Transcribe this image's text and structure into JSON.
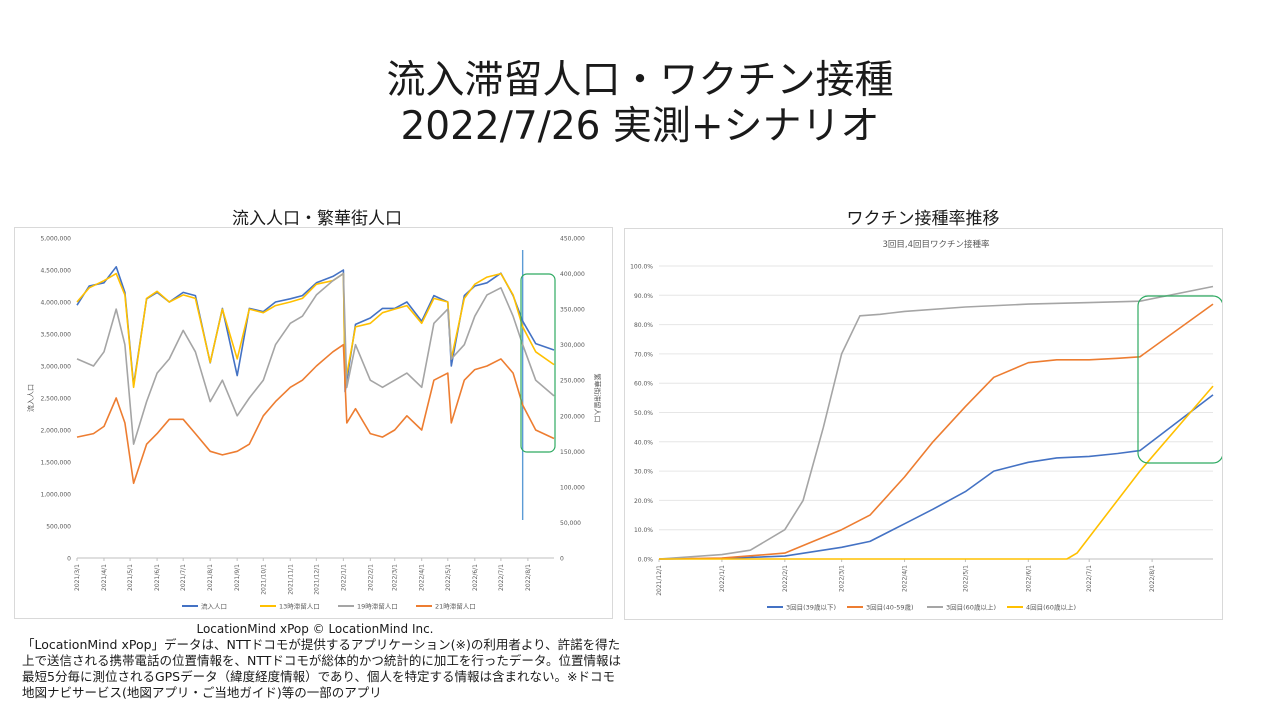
{
  "slide": {
    "title_line1": "流入滞留人口・ワクチン接種",
    "title_line2": "2022/7/26 実測+シナリオ",
    "left_title": "流入人口・繁華街人口",
    "right_title": "ワクチン接種率推移",
    "source": "LocationMind xPop © LocationMind Inc.",
    "note": "「LocationMind xPop」データは、NTTドコモが提供するアプリケーション(※)の利用者より、許諾を得た上で送信される携帯電話の位置情報を、NTTドコモが総体的かつ統計的に加工を行ったデータ。位置情報は最短5分毎に測位されるGPSデータ（緯度経度情報）であり、個人を特定する情報は含まれない。※ドコモ地図ナビサービス(地図アプリ・ご当地ガイド)等の一部のアプリ"
  },
  "chart_data": [
    {
      "type": "line",
      "title": "",
      "ylabel": "流入人口",
      "y2label": "繁華街滞留人口",
      "ylim": [
        0,
        5000000
      ],
      "y2lim": [
        0,
        450000
      ],
      "yticks": [
        "0",
        "500,000",
        "1,000,000",
        "1,500,000",
        "2,000,000",
        "2,500,000",
        "3,000,000",
        "3,500,000",
        "4,000,000",
        "4,500,000",
        "5,000,000"
      ],
      "y2ticks": [
        "0",
        "50,000",
        "100,000",
        "150,000",
        "200,000",
        "250,000",
        "300,000",
        "350,000",
        "400,000",
        "450,000"
      ],
      "xticks": [
        "2021/3/1",
        "2021/4/1",
        "2021/5/1",
        "2021/6/1",
        "2021/7/1",
        "2021/8/1",
        "2021/9/1",
        "2021/10/1",
        "2021/11/1",
        "2021/12/1",
        "2022/1/1",
        "2022/2/1",
        "2022/3/1",
        "2022/4/1",
        "2022/5/1",
        "2022/6/1",
        "2022/7/1",
        "2022/8/1"
      ],
      "legend_position": "bottom",
      "measured_until": "2022/7/26",
      "series": [
        {
          "name": "流入人口",
          "color": "#4472C4",
          "axis": "left",
          "x": [
            "2021/3/1",
            "2021/3/15",
            "2021/4/1",
            "2021/4/15",
            "2021/4/25",
            "2021/5/5",
            "2021/5/20",
            "2021/6/1",
            "2021/6/15",
            "2021/7/1",
            "2021/7/15",
            "2021/8/1",
            "2021/8/15",
            "2021/9/1",
            "2021/9/15",
            "2021/10/1",
            "2021/10/15",
            "2021/11/1",
            "2021/11/15",
            "2021/12/1",
            "2021/12/20",
            "2022/1/1",
            "2022/1/3",
            "2022/1/15",
            "2022/2/1",
            "2022/2/15",
            "2022/3/1",
            "2022/3/15",
            "2022/4/1",
            "2022/4/15",
            "2022/5/1",
            "2022/5/5",
            "2022/5/20",
            "2022/6/1",
            "2022/6/15",
            "2022/7/1",
            "2022/7/15",
            "2022/7/26",
            "2022/8/10",
            "2022/8/31"
          ],
          "values": [
            3950000,
            4250000,
            4300000,
            4550000,
            4150000,
            2700000,
            4050000,
            4150000,
            4000000,
            4150000,
            4100000,
            3050000,
            3900000,
            2850000,
            3900000,
            3850000,
            4000000,
            4050000,
            4100000,
            4300000,
            4400000,
            4500000,
            2600000,
            3650000,
            3750000,
            3900000,
            3900000,
            4000000,
            3700000,
            4100000,
            4000000,
            3000000,
            4100000,
            4250000,
            4300000,
            4450000,
            4100000,
            3700000,
            3350000,
            3250000
          ]
        },
        {
          "name": "13時滞留人口",
          "color": "#FFC000",
          "axis": "right",
          "x": [
            "2021/3/1",
            "2021/3/15",
            "2021/4/1",
            "2021/4/15",
            "2021/4/25",
            "2021/5/5",
            "2021/5/20",
            "2021/6/1",
            "2021/6/15",
            "2021/7/1",
            "2021/7/15",
            "2021/8/1",
            "2021/8/15",
            "2021/9/1",
            "2021/9/15",
            "2021/10/1",
            "2021/10/15",
            "2021/11/1",
            "2021/11/15",
            "2021/12/1",
            "2021/12/20",
            "2022/1/1",
            "2022/1/3",
            "2022/1/15",
            "2022/2/1",
            "2022/2/15",
            "2022/3/1",
            "2022/3/15",
            "2022/4/1",
            "2022/4/15",
            "2022/5/1",
            "2022/5/5",
            "2022/5/20",
            "2022/6/1",
            "2022/6/15",
            "2022/7/1",
            "2022/7/15",
            "2022/7/26",
            "2022/8/10",
            "2022/8/31"
          ],
          "values": [
            360000,
            380000,
            390000,
            400000,
            370000,
            240000,
            365000,
            375000,
            360000,
            370000,
            365000,
            275000,
            350000,
            280000,
            350000,
            345000,
            355000,
            360000,
            365000,
            385000,
            390000,
            400000,
            245000,
            325000,
            330000,
            345000,
            350000,
            355000,
            330000,
            365000,
            360000,
            280000,
            365000,
            385000,
            395000,
            400000,
            370000,
            325000,
            290000,
            272000
          ]
        },
        {
          "name": "19時滞留人口",
          "color": "#A5A5A5",
          "axis": "right",
          "x": [
            "2021/3/1",
            "2021/3/20",
            "2021/4/1",
            "2021/4/15",
            "2021/4/25",
            "2021/5/5",
            "2021/5/20",
            "2021/6/1",
            "2021/6/15",
            "2021/7/1",
            "2021/7/15",
            "2021/8/1",
            "2021/8/15",
            "2021/9/1",
            "2021/9/15",
            "2021/10/1",
            "2021/10/15",
            "2021/11/1",
            "2021/11/15",
            "2021/12/1",
            "2021/12/20",
            "2022/1/1",
            "2022/1/5",
            "2022/1/15",
            "2022/2/1",
            "2022/2/15",
            "2022/3/1",
            "2022/3/15",
            "2022/4/1",
            "2022/4/15",
            "2022/5/1",
            "2022/5/5",
            "2022/5/20",
            "2022/6/1",
            "2022/6/15",
            "2022/7/1",
            "2022/7/15",
            "2022/7/26",
            "2022/8/10",
            "2022/8/31"
          ],
          "values": [
            280000,
            270000,
            290000,
            350000,
            300000,
            160000,
            220000,
            260000,
            280000,
            320000,
            290000,
            220000,
            250000,
            200000,
            225000,
            250000,
            300000,
            330000,
            340000,
            370000,
            390000,
            400000,
            240000,
            300000,
            250000,
            240000,
            250000,
            260000,
            240000,
            330000,
            350000,
            280000,
            300000,
            340000,
            370000,
            380000,
            340000,
            300000,
            250000,
            228000
          ]
        },
        {
          "name": "21時滞留人口",
          "color": "#ED7D31",
          "axis": "right",
          "x": [
            "2021/3/1",
            "2021/3/20",
            "2021/4/1",
            "2021/4/15",
            "2021/4/25",
            "2021/5/5",
            "2021/5/20",
            "2021/6/1",
            "2021/6/15",
            "2021/7/1",
            "2021/7/15",
            "2021/8/1",
            "2021/8/15",
            "2021/9/1",
            "2021/9/15",
            "2021/10/1",
            "2021/10/15",
            "2021/11/1",
            "2021/11/15",
            "2021/12/1",
            "2021/12/20",
            "2022/1/1",
            "2022/1/5",
            "2022/1/15",
            "2022/2/1",
            "2022/2/15",
            "2022/3/1",
            "2022/3/15",
            "2022/4/1",
            "2022/4/15",
            "2022/5/1",
            "2022/5/5",
            "2022/5/20",
            "2022/6/1",
            "2022/6/15",
            "2022/7/1",
            "2022/7/15",
            "2022/7/26",
            "2022/8/10",
            "2022/8/31"
          ],
          "values": [
            170000,
            175000,
            185000,
            225000,
            190000,
            105000,
            160000,
            175000,
            195000,
            195000,
            175000,
            150000,
            145000,
            150000,
            160000,
            200000,
            220000,
            240000,
            250000,
            270000,
            290000,
            300000,
            190000,
            210000,
            175000,
            170000,
            180000,
            200000,
            180000,
            250000,
            260000,
            190000,
            250000,
            265000,
            270000,
            280000,
            260000,
            215000,
            180000,
            168000
          ]
        }
      ]
    },
    {
      "type": "line",
      "title": "3回目,4回目ワクチン接種率",
      "ylim": [
        0,
        1
      ],
      "yticks": [
        "0.0%",
        "10.0%",
        "20.0%",
        "30.0%",
        "40.0%",
        "50.0%",
        "60.0%",
        "70.0%",
        "80.0%",
        "90.0%",
        "100.0%"
      ],
      "xticks": [
        "2021/12/1",
        "2022/1/1",
        "2022/2/1",
        "2022/3/1",
        "2022/4/1",
        "2022/5/1",
        "2022/6/1",
        "2022/7/1",
        "2022/8/1"
      ],
      "legend_position": "bottom",
      "series": [
        {
          "name": "3回目(39歳以下)",
          "color": "#4472C4",
          "x": [
            "2021/12/1",
            "2022/1/1",
            "2022/2/1",
            "2022/3/1",
            "2022/3/15",
            "2022/4/1",
            "2022/4/15",
            "2022/5/1",
            "2022/5/15",
            "2022/6/1",
            "2022/6/15",
            "2022/7/1",
            "2022/7/15",
            "2022/7/26",
            "2022/8/31"
          ],
          "values": [
            0.0,
            0.002,
            0.01,
            0.04,
            0.06,
            0.12,
            0.17,
            0.23,
            0.3,
            0.33,
            0.345,
            0.35,
            0.36,
            0.37,
            0.56
          ]
        },
        {
          "name": "3回目(40-59歳)",
          "color": "#ED7D31",
          "x": [
            "2021/12/1",
            "2022/1/1",
            "2022/2/1",
            "2022/2/15",
            "2022/3/1",
            "2022/3/15",
            "2022/4/1",
            "2022/4/15",
            "2022/5/1",
            "2022/5/15",
            "2022/6/1",
            "2022/6/15",
            "2022/7/1",
            "2022/7/15",
            "2022/7/26",
            "2022/8/31"
          ],
          "values": [
            0.0,
            0.003,
            0.02,
            0.06,
            0.1,
            0.15,
            0.28,
            0.4,
            0.52,
            0.62,
            0.67,
            0.68,
            0.68,
            0.685,
            0.69,
            0.87
          ]
        },
        {
          "name": "3回目(60歳以上)",
          "color": "#A5A5A5",
          "x": [
            "2021/12/1",
            "2022/1/1",
            "2022/1/15",
            "2022/2/1",
            "2022/2/10",
            "2022/2/20",
            "2022/3/1",
            "2022/3/10",
            "2022/3/20",
            "2022/4/1",
            "2022/5/1",
            "2022/6/1",
            "2022/7/1",
            "2022/7/26",
            "2022/8/31"
          ],
          "values": [
            0.0,
            0.015,
            0.03,
            0.1,
            0.2,
            0.45,
            0.7,
            0.83,
            0.835,
            0.845,
            0.86,
            0.87,
            0.875,
            0.88,
            0.93
          ]
        },
        {
          "name": "4回目(60歳以上)",
          "color": "#FFC000",
          "x": [
            "2021/12/1",
            "2022/6/1",
            "2022/6/20",
            "2022/6/25",
            "2022/7/26",
            "2022/8/31"
          ],
          "values": [
            0.0,
            0.0,
            0.0,
            0.02,
            0.3,
            0.59
          ]
        }
      ]
    }
  ]
}
